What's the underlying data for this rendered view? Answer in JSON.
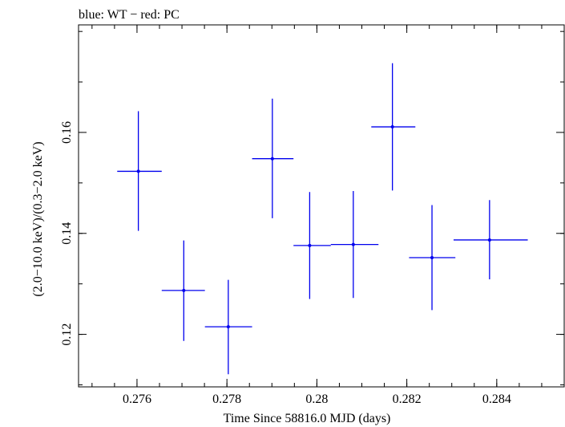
{
  "chart_data": {
    "type": "scatter",
    "title": "blue: WT − red: PC",
    "xlabel": "Time Since 58816.0 MJD (days)",
    "ylabel": "(2.0−10.0 keV)/(0.3−2.0 keV)",
    "xlim": [
      0.2747,
      0.2855
    ],
    "ylim": [
      0.1096,
      0.1813
    ],
    "x_ticks": [
      {
        "value": 0.276,
        "label": "0.276"
      },
      {
        "value": 0.278,
        "label": "0.278"
      },
      {
        "value": 0.28,
        "label": "0.28"
      },
      {
        "value": 0.282,
        "label": "0.282"
      },
      {
        "value": 0.284,
        "label": "0.284"
      }
    ],
    "y_ticks": [
      {
        "value": 0.12,
        "label": "0.12"
      },
      {
        "value": 0.14,
        "label": "0.14"
      },
      {
        "value": 0.16,
        "label": "0.16"
      }
    ],
    "x_minor_step": 0.0005,
    "y_minor_step": 0.01,
    "grid": false,
    "series": [
      {
        "color": "#0000ee",
        "points": [
          {
            "x": 0.27603,
            "xlo": 0.27556,
            "xhi": 0.27655,
            "y": 0.1523,
            "ylo": 0.1405,
            "yhi": 0.1642
          },
          {
            "x": 0.27704,
            "xlo": 0.27655,
            "xhi": 0.27751,
            "y": 0.1287,
            "ylo": 0.1187,
            "yhi": 0.1386
          },
          {
            "x": 0.27803,
            "xlo": 0.27751,
            "xhi": 0.27856,
            "y": 0.1215,
            "ylo": 0.1121,
            "yhi": 0.1308
          },
          {
            "x": 0.27901,
            "xlo": 0.27856,
            "xhi": 0.27948,
            "y": 0.1548,
            "ylo": 0.143,
            "yhi": 0.1667
          },
          {
            "x": 0.27984,
            "xlo": 0.27948,
            "xhi": 0.28031,
            "y": 0.1376,
            "ylo": 0.127,
            "yhi": 0.1482
          },
          {
            "x": 0.28081,
            "xlo": 0.28031,
            "xhi": 0.28137,
            "y": 0.1378,
            "ylo": 0.1272,
            "yhi": 0.1484
          },
          {
            "x": 0.28168,
            "xlo": 0.28121,
            "xhi": 0.28219,
            "y": 0.1611,
            "ylo": 0.1485,
            "yhi": 0.1737
          },
          {
            "x": 0.28256,
            "xlo": 0.28205,
            "xhi": 0.28308,
            "y": 0.1352,
            "ylo": 0.1248,
            "yhi": 0.1456
          },
          {
            "x": 0.28384,
            "xlo": 0.28304,
            "xhi": 0.28469,
            "y": 0.1387,
            "ylo": 0.1309,
            "yhi": 0.1466
          }
        ]
      }
    ]
  }
}
